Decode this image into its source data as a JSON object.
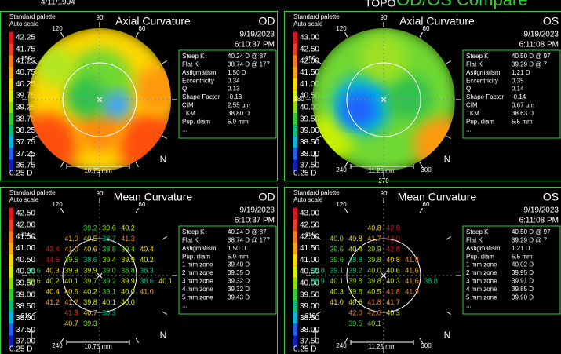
{
  "header": {
    "date": "4/11/1994",
    "brand": "TOPO",
    "mode": "OD/OS Compare"
  },
  "panels": [
    {
      "palette_label": "Standard palette",
      "scale_label": "Auto scale",
      "title": "Axial Curvature",
      "eye": "OD",
      "date": "9/19/2023",
      "time": "6:10:37 PM",
      "scale": [
        "42.25",
        "41.75",
        "41.25",
        "40.75",
        "40.25",
        "39.75",
        "39.25",
        "38.75",
        "38.25",
        "37.75",
        "37.25",
        "36.75"
      ],
      "step": "0.25 D",
      "info": [
        [
          "Steep K",
          "40.24 D @ 87"
        ],
        [
          "Flat K",
          "38.74 D @ 177"
        ],
        [
          "Astigmatism",
          "1.50 D"
        ],
        [
          "Eccentricity",
          "0.34"
        ],
        [
          "Q",
          "0.13"
        ],
        [
          "Shape Factor",
          "-0.13"
        ],
        [
          "CIM",
          "2.55 µm"
        ],
        [
          "TKM",
          "38.80 D"
        ],
        [
          "Pup. diam",
          "5.9 mm"
        ],
        [
          "...",
          ""
        ]
      ],
      "degrees": [
        "90",
        "60",
        "120",
        "150"
      ],
      "left": "T",
      "right": "N",
      "mm": "10.75 mm"
    },
    {
      "palette_label": "Standard palette",
      "scale_label": "Auto scale",
      "title": "Axial Curvature",
      "eye": "OS",
      "date": "9/19/2023",
      "time": "6:11:08 PM",
      "scale": [
        "43.00",
        "42.50",
        "42.00",
        "41.50",
        "41.00",
        "40.50",
        "40.00",
        "39.50",
        "39.00",
        "38.50",
        "38.00",
        "37.50"
      ],
      "step": "0.25 D",
      "info": [
        [
          "Steep K",
          "40.50 D @ 97"
        ],
        [
          "Flat K",
          "39.29 D @ 7"
        ],
        [
          "Astigmatism",
          "1.21 D"
        ],
        [
          "Eccentricity",
          "0.35"
        ],
        [
          "Q",
          "0.14"
        ],
        [
          "Shape Factor",
          "-0.14"
        ],
        [
          "CIM",
          "0.67 µm"
        ],
        [
          "TKM",
          "38.63 D"
        ],
        [
          "Pup. diam",
          "5.5 mm"
        ],
        [
          "...",
          ""
        ]
      ],
      "degrees": [
        "90",
        "60",
        "120",
        "150",
        "180",
        "240",
        "270",
        "300"
      ],
      "left": "T",
      "right": "N",
      "mm": "11.25 mm"
    },
    {
      "palette_label": "Standard palette",
      "scale_label": "Auto scale",
      "title": "Mean Curvature",
      "eye": "OD",
      "date": "9/19/2023",
      "time": "6:10:37 PM",
      "scale": [
        "42.50",
        "42.00",
        "41.50",
        "41.00",
        "40.50",
        "40.00",
        "39.50",
        "39.00",
        "38.50",
        "38.00",
        "37.50",
        "37.00"
      ],
      "step": "0.25 D",
      "info": [
        [
          "Steep K",
          "40.24 D @ 87"
        ],
        [
          "Flat K",
          "38.74 D @ 177"
        ],
        [
          "Astigmatism",
          "1.50 D"
        ],
        [
          "Pup. diam",
          "5.9 mm"
        ],
        [
          "1 mm zone",
          "39.40 D"
        ],
        [
          "2 mm zone",
          "39.35 D"
        ],
        [
          "3 mm zone",
          "39.32 D"
        ],
        [
          "4 mm zone",
          "39.32 D"
        ],
        [
          "5 mm zone",
          "39.43 D"
        ],
        [
          "...",
          ""
        ]
      ],
      "degrees": [
        "90",
        "60",
        "120",
        "150",
        "210",
        "240",
        "270"
      ],
      "left": "T",
      "right": "N",
      "mm": "10.75 mm",
      "grid": [
        [
          null,
          null,
          null,
          "39.2",
          "39.6",
          "40.2",
          null,
          null
        ],
        [
          null,
          null,
          "41.0",
          "40.5",
          "38.7",
          "41.3",
          null,
          null
        ],
        [
          null,
          "43.4",
          "41.0",
          "40.6",
          "38.8",
          "39.4",
          "40.4",
          null
        ],
        [
          null,
          "44.5",
          "39.5",
          "38.6",
          "39.4",
          "39.9",
          "40.2",
          null
        ],
        [
          "38.6",
          "40.3",
          "39.9",
          "39.9",
          "39.0",
          "38.8",
          "38.3",
          null
        ],
        [
          "39.6",
          "40.2",
          "40.1",
          "39.7",
          "39.2",
          "39.9",
          "38.6",
          "40.1"
        ],
        [
          null,
          "40.4",
          "40.6",
          "40.2",
          "39.1",
          "40.0",
          "41.0",
          null
        ],
        [
          null,
          "41.2",
          "41.2",
          "39.8",
          "40.1",
          "40.0",
          null,
          null
        ],
        [
          null,
          null,
          "41.8",
          "40.7",
          "38.3",
          null,
          null,
          null
        ],
        [
          null,
          null,
          "40.7",
          "39.3",
          null,
          null,
          null,
          null
        ]
      ]
    },
    {
      "palette_label": "Standard palette",
      "scale_label": "Auto scale",
      "title": "Mean Curvature",
      "eye": "OS",
      "date": "9/19/2023",
      "time": "6:11:08 PM",
      "scale": [
        "43.00",
        "42.50",
        "42.00",
        "41.50",
        "41.00",
        "40.50",
        "40.00",
        "39.50",
        "39.00",
        "38.50",
        "38.00",
        "37.50"
      ],
      "step": "0.25 D",
      "info": [
        [
          "Steep K",
          "40.50 D @ 97"
        ],
        [
          "Flat K",
          "39.29 D @ 7"
        ],
        [
          "Astigmatism",
          "1.21 D"
        ],
        [
          "Pup. diam",
          "5.5 mm"
        ],
        [
          "1 mm zone",
          "40.02 D"
        ],
        [
          "2 mm zone",
          "39.95 D"
        ],
        [
          "3 mm zone",
          "39.91 D"
        ],
        [
          "4 mm zone",
          "39.85 D"
        ],
        [
          "5 mm zone",
          "39.90 D"
        ],
        [
          "...",
          ""
        ]
      ],
      "degrees": [
        "90",
        "60",
        "120",
        "150",
        "210",
        "240",
        "270",
        "300"
      ],
      "left": "T",
      "right": "N",
      "mm": "11.25 mm",
      "grid": [
        [
          null,
          null,
          null,
          "40.8",
          "42.8",
          null,
          null,
          null
        ],
        [
          null,
          "40.0",
          "40.8",
          "41.7",
          "43.0",
          null,
          null,
          null
        ],
        [
          null,
          "39.6",
          "40.4",
          "39.9",
          "42.8",
          null,
          null,
          null
        ],
        [
          null,
          "39.6",
          "38.8",
          "39.8",
          "40.8",
          "41.8",
          null,
          null
        ],
        [
          "38.8",
          "39.1",
          "39.2",
          "40.0",
          "40.6",
          "41.6",
          null,
          null
        ],
        [
          "38.9",
          "40.1",
          "39.8",
          "39.8",
          "40.3",
          "41.6",
          "38.8",
          null
        ],
        [
          null,
          "40.3",
          "39.8",
          "40.5",
          "41.8",
          "41.9",
          null,
          null
        ],
        [
          null,
          "41.0",
          "40.6",
          "41.8",
          "41.7",
          null,
          null,
          null
        ],
        [
          null,
          null,
          "42.0",
          "42.0",
          "40.3",
          null,
          null,
          null
        ],
        [
          null,
          null,
          "39.5",
          "40.1",
          null,
          null,
          null,
          null
        ]
      ]
    }
  ]
}
